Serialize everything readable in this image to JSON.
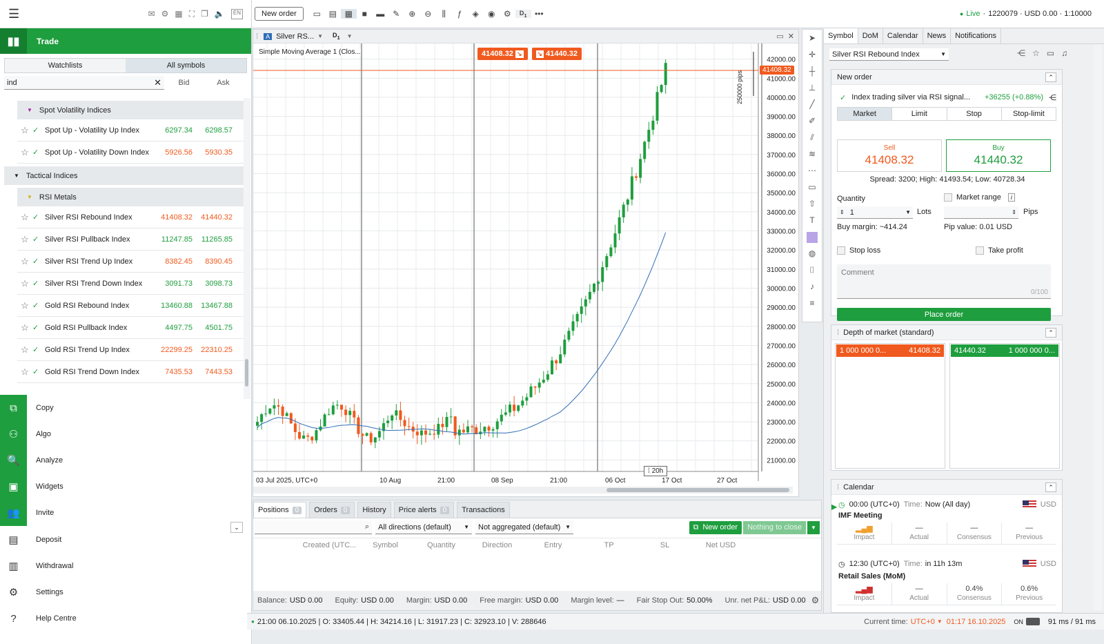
{
  "app": {
    "lang": "EN"
  },
  "left": {
    "section": "Trade",
    "tabs": [
      "Watchlists",
      "All symbols"
    ],
    "search_value": "ind",
    "col_bid": "Bid",
    "col_ask": "Ask",
    "groups": {
      "g1": "Spot Volatility Indices",
      "g2": "Tactical Indices",
      "g3": "RSI Metals"
    },
    "rows": [
      {
        "name": "Spot Up - Volatility Up Index",
        "bid": "6297.34",
        "ask": "6298.57",
        "bc": "g",
        "ac": "g"
      },
      {
        "name": "Spot Up - Volatility Down Index",
        "bid": "5926.56",
        "ask": "5930.35",
        "bc": "o",
        "ac": "o"
      },
      {
        "name": "Silver RSI Rebound Index",
        "bid": "41408.32",
        "ask": "41440.32",
        "bc": "o",
        "ac": "o"
      },
      {
        "name": "Silver RSI Pullback Index",
        "bid": "11247.85",
        "ask": "11265.85",
        "bc": "g",
        "ac": "g"
      },
      {
        "name": "Silver RSI Trend Up Index",
        "bid": "8382.45",
        "ask": "8390.45",
        "bc": "o",
        "ac": "o"
      },
      {
        "name": "Silver RSI Trend Down Index",
        "bid": "3091.73",
        "ask": "3098.73",
        "bc": "g",
        "ac": "g"
      },
      {
        "name": "Gold RSI Rebound Index",
        "bid": "13460.88",
        "ask": "13467.88",
        "bc": "g",
        "ac": "g"
      },
      {
        "name": "Gold RSI Pullback Index",
        "bid": "4497.75",
        "ask": "4501.75",
        "bc": "g",
        "ac": "g"
      },
      {
        "name": "Gold RSI Trend Up Index",
        "bid": "22299.25",
        "ask": "22310.25",
        "bc": "o",
        "ac": "o"
      },
      {
        "name": "Gold RSI Trend Down Index",
        "bid": "7435.53",
        "ask": "7443.53",
        "bc": "o",
        "ac": "o"
      }
    ],
    "nav": [
      "Copy",
      "Algo",
      "Analyze",
      "Widgets",
      "Invite",
      "Deposit",
      "Withdrawal",
      "Settings",
      "Help Centre"
    ]
  },
  "toolbar": {
    "new_order": "New order",
    "timeframe": "D",
    "timeframe_sub": "1",
    "live_label": "Live",
    "account": "1220079 · USD 0.00 · 1:10000"
  },
  "chart": {
    "symbol": "Silver RS...",
    "timeframe": "D",
    "timeframe_sub": "1",
    "indicator": "Simple Moving Average 1 (Clos...",
    "sell_tag": "41408.32",
    "buy_tag": "41440.32",
    "current_price": "41408.32",
    "pips_label": "250000 pips",
    "countdown": "20h",
    "y_ticks": [
      "42000.00",
      "41000.00",
      "40000.00",
      "39000.00",
      "38000.00",
      "37000.00",
      "36000.00",
      "35000.00",
      "34000.00",
      "33000.00",
      "32000.00",
      "31000.00",
      "30000.00",
      "29000.00",
      "28000.00",
      "27000.00",
      "26000.00",
      "25000.00",
      "24000.00",
      "23000.00",
      "22000.00",
      "21000.00"
    ],
    "x_ticks": [
      "03 Jul 2025, UTC+0",
      "10 Aug",
      "21:00",
      "08 Sep",
      "21:00",
      "06 Oct",
      "17 Oct",
      "27 Oct"
    ]
  },
  "chart_data": {
    "type": "candlestick",
    "y_range": [
      20400,
      42600
    ],
    "series": [
      {
        "name": "Simple Moving Average 1 (Clos...",
        "type": "line",
        "color": "#2f6db5"
      }
    ],
    "note_colors": {
      "up": "#1e9e3e",
      "down": "#f05a1e"
    }
  },
  "bottom": {
    "tabs": [
      {
        "label": "Positions",
        "count": "0"
      },
      {
        "label": "Orders",
        "count": "0"
      },
      {
        "label": "History",
        "count": ""
      },
      {
        "label": "Price alerts",
        "count": "0"
      },
      {
        "label": "Transactions",
        "count": ""
      }
    ],
    "filter_dir": "All directions (default)",
    "filter_agg": "Not aggregated (default)",
    "new_order": "New order",
    "nothing_to_close": "Nothing to close",
    "columns": [
      "Created (UTC...",
      "Symbol",
      "Quantity",
      "Direction",
      "Entry",
      "TP",
      "SL",
      "Net USD"
    ],
    "footer": {
      "balance_k": "Balance:",
      "balance_v": "USD 0.00",
      "equity_k": "Equity:",
      "equity_v": "USD 0.00",
      "margin_k": "Margin:",
      "margin_v": "USD 0.00",
      "free_k": "Free margin:",
      "free_v": "USD 0.00",
      "level_k": "Margin level:",
      "level_v": "—",
      "fso_k": "Fair Stop Out:",
      "fso_v": "50.00%",
      "pnl_k": "Unr. net P&L:",
      "pnl_v": "USD 0.00"
    }
  },
  "status": {
    "ohlc": "21:00 06.10.2025 | O: 33405.44 | H: 34214.16 | L: 31917.23 | C: 32923.10 | V: 288646",
    "current_time_k": "Current time:",
    "tz": "UTC+0",
    "time": "01:17 16.10.2025",
    "on": "ON",
    "latency": "91 ms / 91 ms"
  },
  "right": {
    "tabs": [
      "Symbol",
      "DoM",
      "Calendar",
      "News",
      "Notifications"
    ],
    "symbol_select": "Silver RSI Rebound Index",
    "new_order": {
      "title": "New order",
      "signal_text": "Index trading silver via RSI signal...",
      "signal_change": "+36255 (+0.88%)",
      "order_types": [
        "Market",
        "Limit",
        "Stop",
        "Stop-limit"
      ],
      "sell_label": "Sell",
      "sell_price": "41408.32",
      "buy_label": "Buy",
      "buy_price": "41440.32",
      "spread": "Spread: 3200; High: 41493.54; Low: 40728.34",
      "quantity_label": "Quantity",
      "quantity_value": "1",
      "lots": "Lots",
      "market_range": "Market range",
      "pips": "Pips",
      "buy_margin": "Buy margin: ~414.24",
      "pip_value": "Pip value: 0.01 USD",
      "stop_loss": "Stop loss",
      "take_profit": "Take profit",
      "comment_placeholder": "Comment",
      "comment_count": "0/100",
      "place_order": "Place order"
    },
    "dom": {
      "title": "Depth of market (standard)",
      "sell_vol": "1 000 000 0...",
      "sell_price": "41408.32",
      "buy_price": "41440.32",
      "buy_vol": "1 000 000 0..."
    },
    "calendar": {
      "title": "Calendar",
      "events": [
        {
          "time": "00:00 (UTC+0)",
          "time_k": "Time:",
          "when": "Now (All day)",
          "cur": "USD",
          "name": "IMF Meeting",
          "impact": "Impact",
          "actual": "Actual",
          "consensus": "Consensus",
          "previous": "Previous",
          "actual_v": "—",
          "consensus_v": "—",
          "previous_v": "—"
        },
        {
          "time": "12:30 (UTC+0)",
          "time_k": "Time:",
          "when": "in 11h 13m",
          "cur": "USD",
          "name": "Retail Sales (MoM)",
          "impact": "Impact",
          "actual": "Actual",
          "consensus": "Consensus",
          "previous": "Previous",
          "actual_v": "—",
          "consensus_v": "0.4%",
          "previous_v": "0.6%"
        }
      ]
    }
  }
}
